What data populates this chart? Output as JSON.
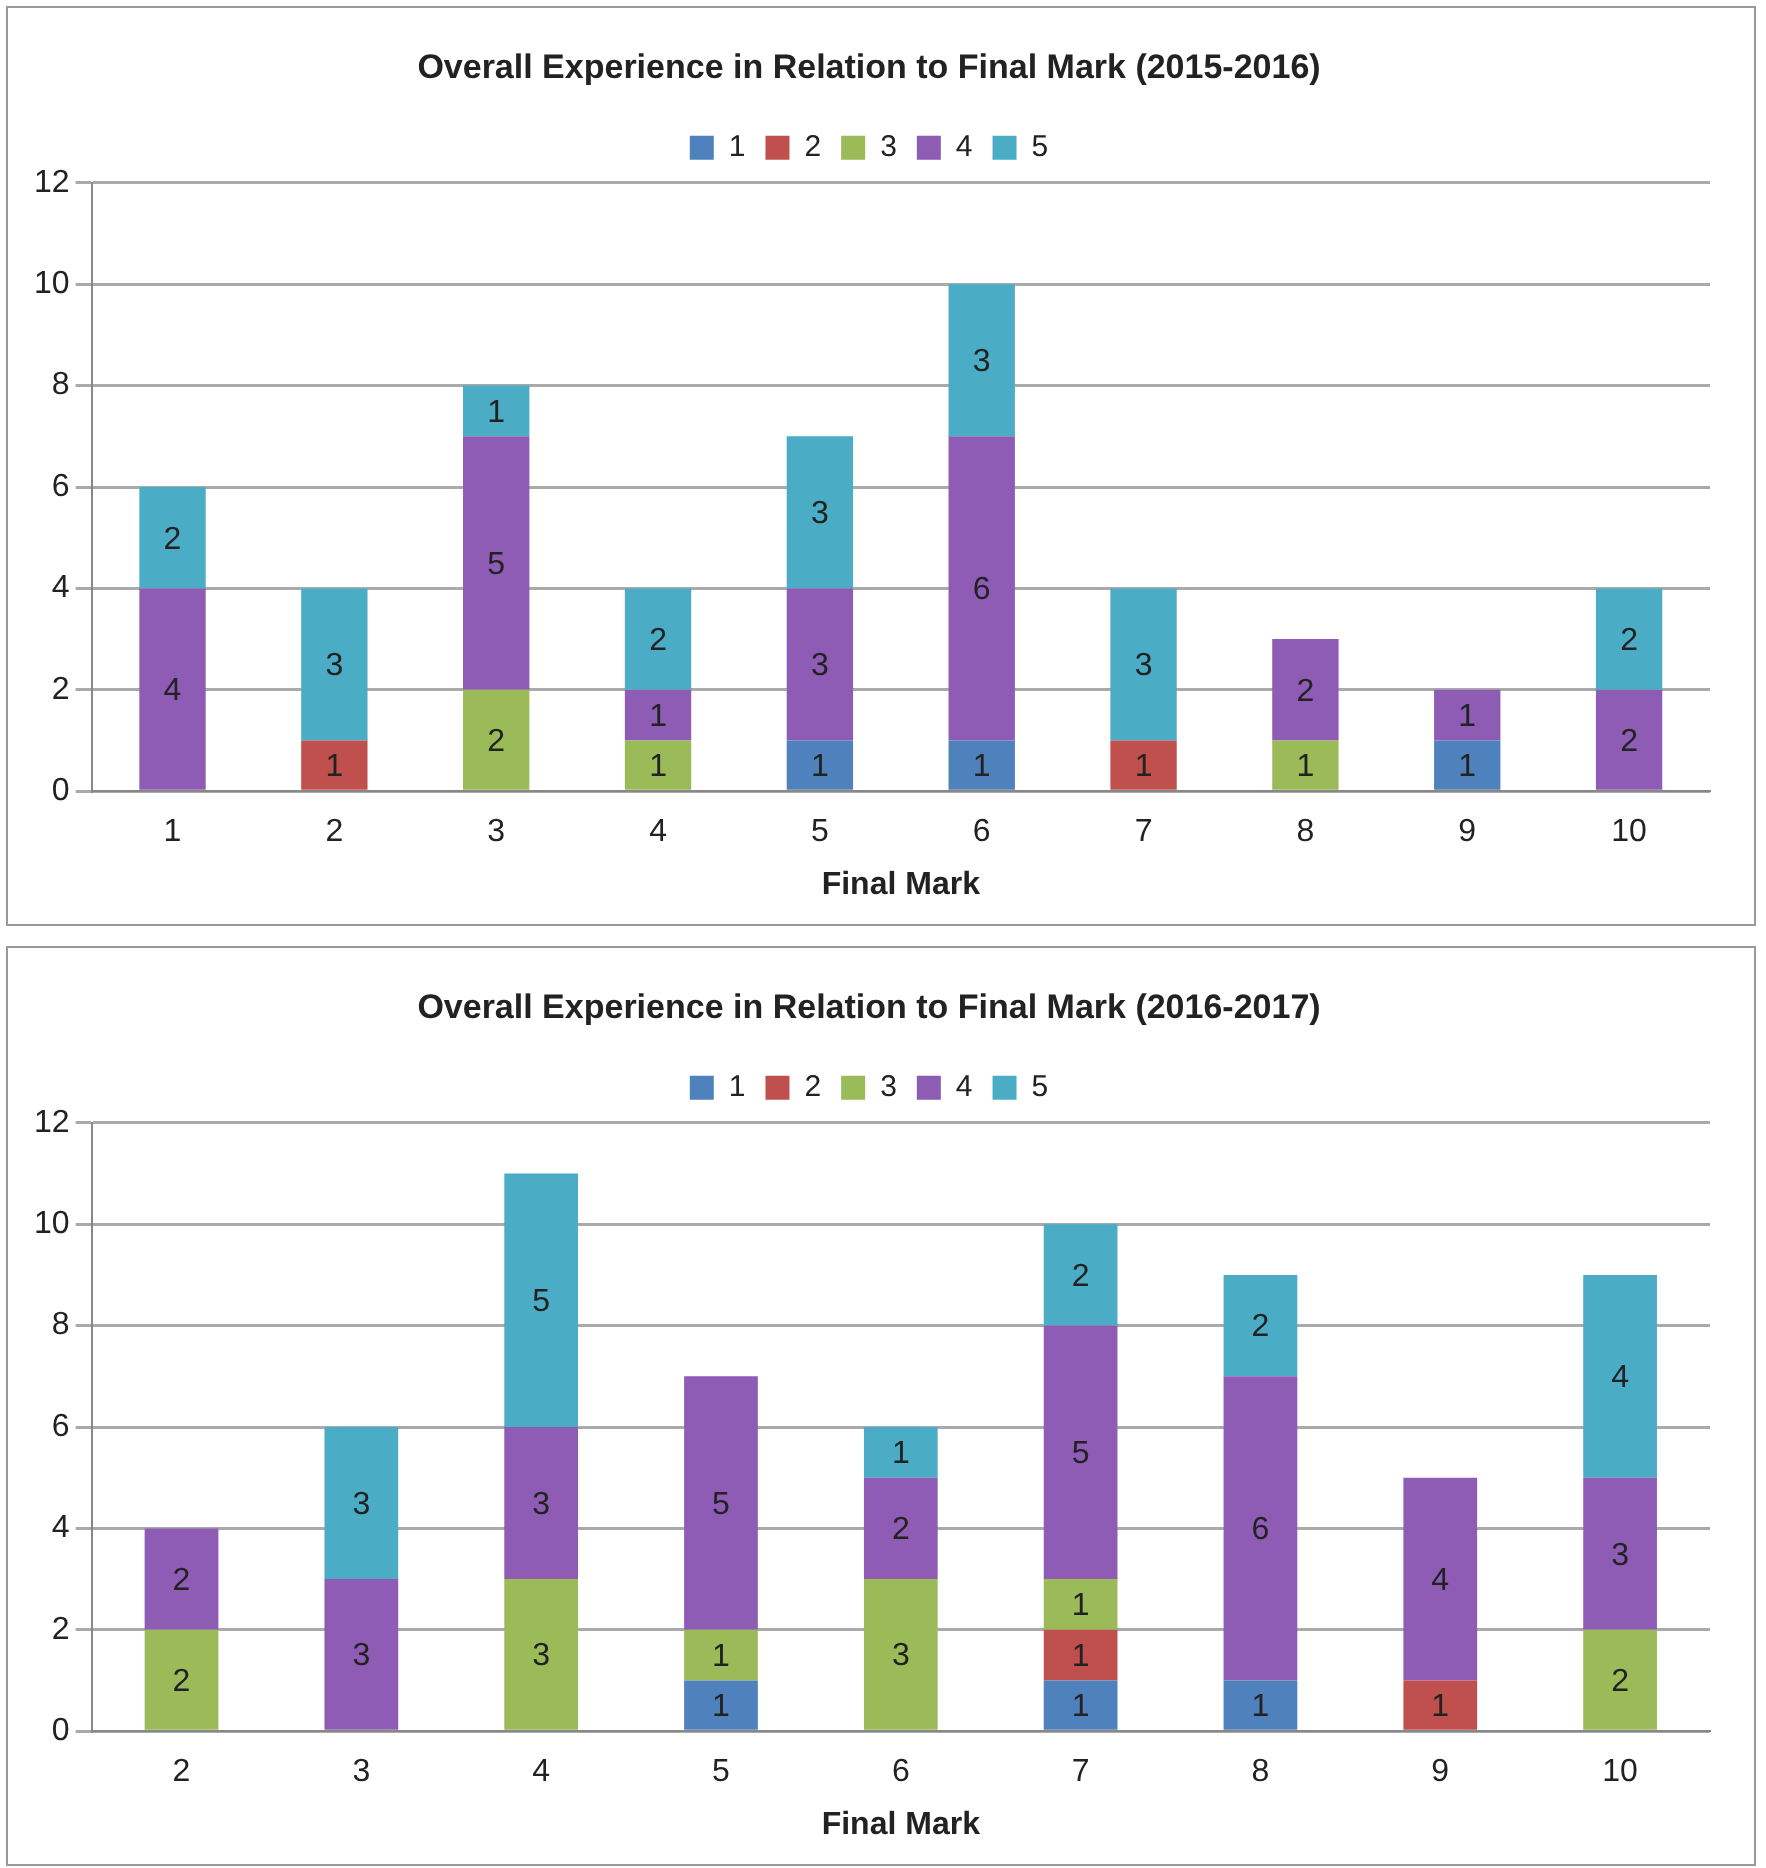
{
  "chart_data": [
    {
      "type": "bar",
      "title": "Overall Experience in Relation to Final Mark (2015-2016)",
      "xlabel": "Final Mark",
      "categories": [
        "1",
        "2",
        "3",
        "4",
        "5",
        "6",
        "7",
        "8",
        "9",
        "10"
      ],
      "stacked": true,
      "ylim": [
        0,
        12
      ],
      "yticks": [
        0,
        2,
        4,
        6,
        8,
        10,
        12
      ],
      "grid": "y",
      "legend": "top",
      "data_labels": true,
      "series": [
        {
          "name": "1",
          "color": "#4f81bd",
          "values": [
            null,
            null,
            null,
            null,
            1,
            1,
            null,
            null,
            1,
            null
          ]
        },
        {
          "name": "2",
          "color": "#c0504d",
          "values": [
            null,
            1,
            null,
            null,
            null,
            null,
            1,
            null,
            null,
            null
          ]
        },
        {
          "name": "3",
          "color": "#9bbb59",
          "values": [
            null,
            null,
            2,
            1,
            null,
            null,
            null,
            1,
            null,
            null
          ]
        },
        {
          "name": "4",
          "color": "#8e5bb5",
          "values": [
            4,
            null,
            5,
            1,
            3,
            6,
            null,
            2,
            1,
            2
          ]
        },
        {
          "name": "5",
          "color": "#4bacc6",
          "values": [
            2,
            3,
            1,
            2,
            3,
            3,
            3,
            null,
            null,
            2
          ]
        }
      ]
    },
    {
      "type": "bar",
      "title": "Overall Experience in Relation to Final Mark (2016-2017)",
      "xlabel": "Final Mark",
      "categories": [
        "2",
        "3",
        "4",
        "5",
        "6",
        "7",
        "8",
        "9",
        "10"
      ],
      "stacked": true,
      "ylim": [
        0,
        12
      ],
      "yticks": [
        0,
        2,
        4,
        6,
        8,
        10,
        12
      ],
      "grid": "y",
      "legend": "top",
      "data_labels": true,
      "series": [
        {
          "name": "1",
          "color": "#4f81bd",
          "values": [
            null,
            null,
            null,
            1,
            null,
            1,
            1,
            null,
            null
          ]
        },
        {
          "name": "2",
          "color": "#c0504d",
          "values": [
            null,
            null,
            null,
            null,
            null,
            1,
            null,
            1,
            null
          ]
        },
        {
          "name": "3",
          "color": "#9bbb59",
          "values": [
            2,
            null,
            3,
            1,
            3,
            1,
            null,
            null,
            2
          ]
        },
        {
          "name": "4",
          "color": "#8e5bb5",
          "values": [
            2,
            3,
            3,
            5,
            2,
            5,
            6,
            4,
            3
          ]
        },
        {
          "name": "5",
          "color": "#4bacc6",
          "values": [
            null,
            3,
            5,
            null,
            1,
            2,
            2,
            null,
            4
          ]
        }
      ]
    }
  ]
}
